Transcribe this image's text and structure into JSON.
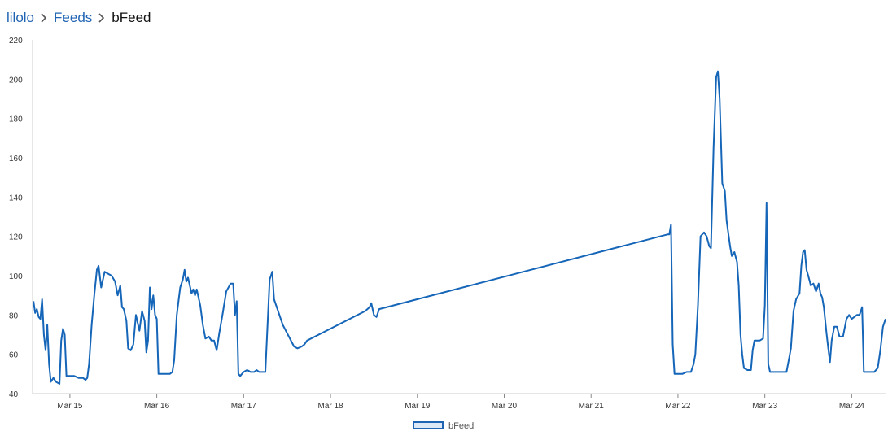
{
  "breadcrumb": {
    "items": [
      "lilolo",
      "Feeds"
    ],
    "current": "bFeed",
    "separator_icon": "chevron-right-icon"
  },
  "colors": {
    "link": "#1f63b3",
    "series": "#1565b8",
    "axis": "#cccccc"
  },
  "chart_data": {
    "type": "line",
    "xlabel": "",
    "ylabel": "",
    "ylim": [
      40,
      220
    ],
    "xlim": [
      14.57,
      24.39
    ],
    "y_ticks": [
      40,
      60,
      80,
      100,
      120,
      140,
      160,
      180,
      200,
      220
    ],
    "x_ticks": [
      {
        "label": "Mar 15",
        "value": 15
      },
      {
        "label": "Mar 16",
        "value": 16
      },
      {
        "label": "Mar 17",
        "value": 17
      },
      {
        "label": "Mar 18",
        "value": 18
      },
      {
        "label": "Mar 19",
        "value": 19
      },
      {
        "label": "Mar 20",
        "value": 20
      },
      {
        "label": "Mar 21",
        "value": 21
      },
      {
        "label": "Mar 22",
        "value": 22
      },
      {
        "label": "Mar 23",
        "value": 23
      },
      {
        "label": "Mar 24",
        "value": 24
      }
    ],
    "legend": [
      "bFeed"
    ],
    "series": [
      {
        "name": "bFeed",
        "points": [
          [
            14.58,
            87
          ],
          [
            14.6,
            81
          ],
          [
            14.62,
            83
          ],
          [
            14.64,
            79
          ],
          [
            14.66,
            78
          ],
          [
            14.68,
            88
          ],
          [
            14.7,
            70
          ],
          [
            14.72,
            62
          ],
          [
            14.74,
            75
          ],
          [
            14.76,
            55
          ],
          [
            14.78,
            46
          ],
          [
            14.81,
            48
          ],
          [
            14.84,
            46
          ],
          [
            14.88,
            45
          ],
          [
            14.9,
            67
          ],
          [
            14.92,
            73
          ],
          [
            14.94,
            70
          ],
          [
            14.96,
            49
          ],
          [
            15.0,
            49
          ],
          [
            15.05,
            49
          ],
          [
            15.1,
            48
          ],
          [
            15.15,
            48
          ],
          [
            15.18,
            47
          ],
          [
            15.2,
            48
          ],
          [
            15.22,
            55
          ],
          [
            15.25,
            75
          ],
          [
            15.28,
            90
          ],
          [
            15.31,
            103
          ],
          [
            15.33,
            105
          ],
          [
            15.36,
            94
          ],
          [
            15.4,
            102
          ],
          [
            15.44,
            101
          ],
          [
            15.48,
            100
          ],
          [
            15.52,
            97
          ],
          [
            15.55,
            90
          ],
          [
            15.58,
            95
          ],
          [
            15.6,
            84
          ],
          [
            15.62,
            83
          ],
          [
            15.65,
            77
          ],
          [
            15.67,
            63
          ],
          [
            15.7,
            62
          ],
          [
            15.73,
            65
          ],
          [
            15.76,
            80
          ],
          [
            15.8,
            72
          ],
          [
            15.83,
            82
          ],
          [
            15.86,
            77
          ],
          [
            15.88,
            61
          ],
          [
            15.9,
            67
          ],
          [
            15.92,
            94
          ],
          [
            15.94,
            83
          ],
          [
            15.96,
            90
          ],
          [
            15.98,
            80
          ],
          [
            16.0,
            78
          ],
          [
            16.02,
            50
          ],
          [
            16.1,
            50
          ],
          [
            16.15,
            50
          ],
          [
            16.18,
            51
          ],
          [
            16.2,
            57
          ],
          [
            16.23,
            80
          ],
          [
            16.27,
            94
          ],
          [
            16.3,
            98
          ],
          [
            16.32,
            103
          ],
          [
            16.34,
            97
          ],
          [
            16.36,
            99
          ],
          [
            16.38,
            95
          ],
          [
            16.4,
            91
          ],
          [
            16.42,
            93
          ],
          [
            16.44,
            90
          ],
          [
            16.46,
            93
          ],
          [
            16.5,
            85
          ],
          [
            16.53,
            75
          ],
          [
            16.56,
            68
          ],
          [
            16.6,
            69
          ],
          [
            16.63,
            67
          ],
          [
            16.66,
            67
          ],
          [
            16.69,
            62
          ],
          [
            16.72,
            71
          ],
          [
            16.76,
            81
          ],
          [
            16.8,
            92
          ],
          [
            16.85,
            96
          ],
          [
            16.88,
            96
          ],
          [
            16.9,
            80
          ],
          [
            16.92,
            87
          ],
          [
            16.94,
            50
          ],
          [
            16.96,
            49
          ],
          [
            17.0,
            51
          ],
          [
            17.04,
            52
          ],
          [
            17.08,
            51
          ],
          [
            17.12,
            51
          ],
          [
            17.15,
            52
          ],
          [
            17.18,
            51
          ],
          [
            17.22,
            51
          ],
          [
            17.25,
            51
          ],
          [
            17.3,
            98
          ],
          [
            17.33,
            102
          ],
          [
            17.35,
            88
          ],
          [
            17.45,
            75
          ],
          [
            17.58,
            64
          ],
          [
            17.62,
            63
          ],
          [
            17.67,
            64
          ],
          [
            17.7,
            65
          ],
          [
            17.73,
            67
          ],
          [
            18.4,
            82
          ],
          [
            18.45,
            84
          ],
          [
            18.47,
            86
          ],
          [
            18.5,
            80
          ],
          [
            18.53,
            79
          ],
          [
            18.56,
            83
          ],
          [
            21.88,
            121
          ],
          [
            21.9,
            121
          ],
          [
            21.92,
            126
          ],
          [
            21.94,
            65
          ],
          [
            21.96,
            50
          ],
          [
            22.0,
            50
          ],
          [
            22.05,
            50
          ],
          [
            22.1,
            51
          ],
          [
            22.15,
            51
          ],
          [
            22.18,
            55
          ],
          [
            22.2,
            60
          ],
          [
            22.23,
            85
          ],
          [
            22.26,
            120
          ],
          [
            22.3,
            122
          ],
          [
            22.33,
            120
          ],
          [
            22.36,
            115
          ],
          [
            22.38,
            114
          ],
          [
            22.41,
            165
          ],
          [
            22.44,
            201
          ],
          [
            22.46,
            204
          ],
          [
            22.48,
            190
          ],
          [
            22.51,
            147
          ],
          [
            22.54,
            143
          ],
          [
            22.56,
            128
          ],
          [
            22.6,
            115
          ],
          [
            22.62,
            110
          ],
          [
            22.65,
            112
          ],
          [
            22.68,
            107
          ],
          [
            22.7,
            95
          ],
          [
            22.72,
            70
          ],
          [
            22.74,
            60
          ],
          [
            22.76,
            53
          ],
          [
            22.8,
            52
          ],
          [
            22.84,
            52
          ],
          [
            22.86,
            62
          ],
          [
            22.88,
            67
          ],
          [
            22.9,
            67
          ],
          [
            22.94,
            67
          ],
          [
            22.98,
            68
          ],
          [
            23.0,
            85
          ],
          [
            23.02,
            137
          ],
          [
            23.04,
            55
          ],
          [
            23.06,
            51
          ],
          [
            23.1,
            51
          ],
          [
            23.15,
            51
          ],
          [
            23.2,
            51
          ],
          [
            23.25,
            51
          ],
          [
            23.28,
            58
          ],
          [
            23.3,
            63
          ],
          [
            23.33,
            82
          ],
          [
            23.36,
            88
          ],
          [
            23.4,
            91
          ],
          [
            23.42,
            105
          ],
          [
            23.44,
            112
          ],
          [
            23.46,
            113
          ],
          [
            23.48,
            103
          ],
          [
            23.5,
            100
          ],
          [
            23.53,
            95
          ],
          [
            23.56,
            96
          ],
          [
            23.59,
            92
          ],
          [
            23.62,
            96
          ],
          [
            23.64,
            91
          ],
          [
            23.66,
            89
          ],
          [
            23.68,
            84
          ],
          [
            23.71,
            71
          ],
          [
            23.73,
            63
          ],
          [
            23.75,
            56
          ],
          [
            23.77,
            67
          ],
          [
            23.8,
            74
          ],
          [
            23.83,
            74
          ],
          [
            23.86,
            69
          ],
          [
            23.9,
            69
          ],
          [
            23.94,
            78
          ],
          [
            23.97,
            80
          ],
          [
            24.0,
            78
          ],
          [
            24.03,
            79
          ],
          [
            24.06,
            80
          ],
          [
            24.09,
            80
          ],
          [
            24.12,
            84
          ],
          [
            24.14,
            51
          ],
          [
            24.2,
            51
          ],
          [
            24.26,
            51
          ],
          [
            24.3,
            53
          ],
          [
            24.33,
            62
          ],
          [
            24.36,
            74
          ],
          [
            24.39,
            78
          ]
        ]
      }
    ]
  }
}
